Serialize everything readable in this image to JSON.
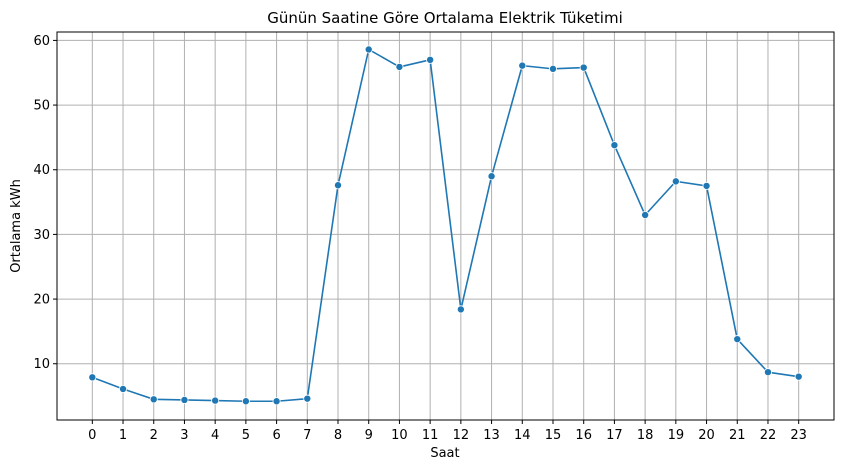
{
  "chart_data": {
    "type": "line",
    "title": "Günün Saatine Göre Ortalama Elektrik Tüketimi",
    "xlabel": "Saat",
    "ylabel": "Ortalama kWh",
    "x": [
      0,
      1,
      2,
      3,
      4,
      5,
      6,
      7,
      8,
      9,
      10,
      11,
      12,
      13,
      14,
      15,
      16,
      17,
      18,
      19,
      20,
      21,
      22,
      23
    ],
    "x_tick_labels": [
      "0",
      "1",
      "2",
      "3",
      "4",
      "5",
      "6",
      "7",
      "8",
      "9",
      "10",
      "11",
      "12",
      "13",
      "14",
      "15",
      "16",
      "17",
      "18",
      "19",
      "20",
      "21",
      "22",
      "23"
    ],
    "y_ticks": [
      10,
      20,
      30,
      40,
      50,
      60
    ],
    "y_tick_labels": [
      "10",
      "20",
      "30",
      "40",
      "50",
      "60"
    ],
    "series": [
      {
        "values": [
          7.9,
          6.1,
          4.5,
          4.4,
          4.3,
          4.2,
          4.2,
          4.6,
          37.6,
          58.6,
          55.9,
          57.0,
          18.4,
          39.0,
          56.1,
          55.6,
          55.8,
          43.8,
          33.0,
          38.2,
          37.5,
          13.8,
          8.7,
          8.0
        ],
        "color": "#1f77b4",
        "marker": "circle"
      }
    ],
    "xlim": [
      -1.15,
      24.15
    ],
    "ylim": [
      1.3,
      61.3
    ],
    "grid": true,
    "colors": {
      "line": "#1f77b4",
      "grid": "#b0b0b0",
      "frame": "#000000"
    }
  }
}
